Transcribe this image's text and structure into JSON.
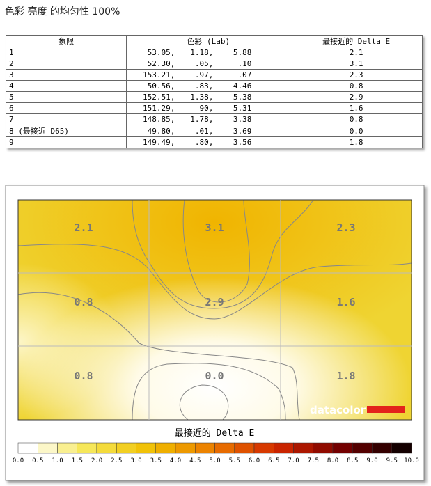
{
  "header": {
    "title": "色彩 亮度 的均匀性 100%"
  },
  "table": {
    "columns": [
      "象限",
      "色彩 (Lab)",
      "最接近的 Delta E"
    ],
    "rows": [
      [
        "1",
        [
          "53.05,",
          "1.18,",
          "5.88"
        ],
        "2.1"
      ],
      [
        "2",
        [
          "52.30,",
          ".05,",
          ".10"
        ],
        "3.1"
      ],
      [
        "3",
        [
          "153.21,",
          ".97,",
          ".07"
        ],
        "2.3"
      ],
      [
        "4",
        [
          "50.56,",
          ".83,",
          "4.46"
        ],
        "0.8"
      ],
      [
        "5",
        [
          "152.51,",
          "1.38,",
          "5.38"
        ],
        "2.9"
      ],
      [
        "6",
        [
          "151.29,",
          "90,",
          "5.31"
        ],
        "1.6"
      ],
      [
        "7",
        [
          "148.85,",
          "1.78,",
          "3.38"
        ],
        "0.8"
      ],
      [
        "8 (最接近 D65)",
        [
          "49.80,",
          ".01,",
          "3.69"
        ],
        "0.0"
      ],
      [
        "9",
        [
          "149.49,",
          ".80,",
          "3.56"
        ],
        "1.8"
      ]
    ]
  },
  "heatmap": {
    "labels": [
      "2.1",
      "3.1",
      "2.3",
      "0.8",
      "2.9",
      "1.6",
      "0.8",
      "0.0",
      "1.8"
    ],
    "logo": "datacolor",
    "legend_title": "最接近的 Delta E",
    "scale_ticks": [
      "0.0",
      "0.5",
      "1.0",
      "1.5",
      "2.0",
      "2.5",
      "3.0",
      "3.5",
      "4.0",
      "4.5",
      "5.0",
      "5.5",
      "6.0",
      "6.5",
      "7.0",
      "7.5",
      "8.0",
      "8.5",
      "9.0",
      "9.5",
      "10.0"
    ]
  }
}
